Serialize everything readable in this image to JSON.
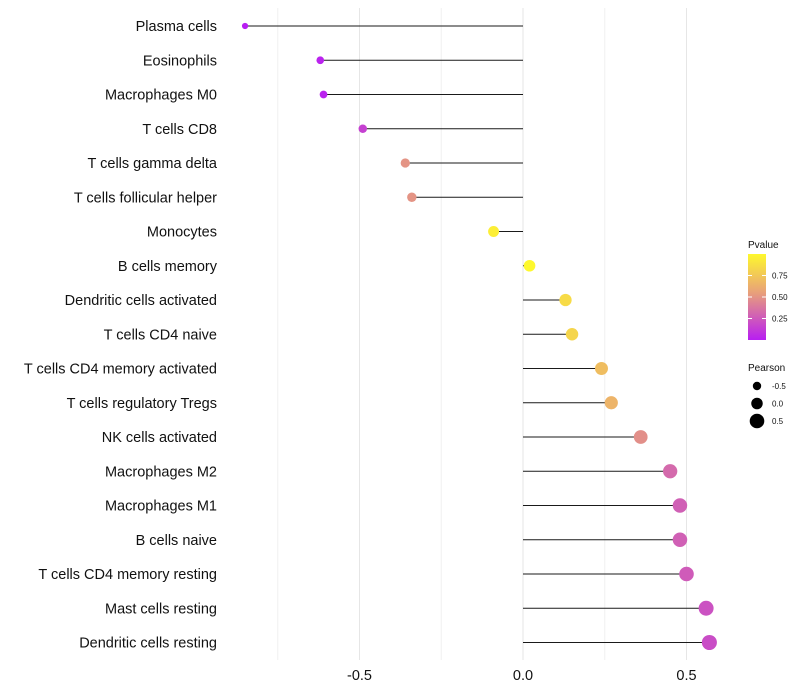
{
  "chart_data": {
    "type": "lollipop",
    "title": "",
    "xlabel": "",
    "ylabel": "",
    "xlim": [
      -0.85,
      0.6
    ],
    "x_ticks": [
      -0.5,
      0.0,
      0.5
    ],
    "x_tick_labels": [
      "-0.5",
      "0.0",
      "0.5"
    ],
    "x_minor_gridlines": [
      -0.75,
      -0.25,
      0.25
    ],
    "grid": true,
    "baseline": 0,
    "categories": [
      "Plasma cells",
      "Eosinophils",
      "Macrophages M0",
      "T cells CD8",
      "T cells gamma delta",
      "T cells follicular helper",
      "Monocytes",
      "B cells memory",
      "Dendritic cells activated",
      "T cells CD4 naive",
      "T cells CD4 memory activated",
      "T cells regulatory  Tregs ",
      "NK cells activated",
      "Macrophages M2",
      "Macrophages M1",
      "B cells naive",
      "T cells CD4 memory resting",
      "Mast cells resting",
      "Dendritic cells resting"
    ],
    "pearson": [
      -0.85,
      -0.62,
      -0.61,
      -0.49,
      -0.36,
      -0.34,
      -0.09,
      0.02,
      0.13,
      0.15,
      0.24,
      0.27,
      0.36,
      0.45,
      0.48,
      0.48,
      0.5,
      0.56,
      0.57
    ],
    "pvalue": [
      0.001,
      0.02,
      0.02,
      0.15,
      0.5,
      0.5,
      0.95,
      1.0,
      0.85,
      0.82,
      0.7,
      0.65,
      0.48,
      0.32,
      0.28,
      0.28,
      0.26,
      0.22,
      0.2
    ],
    "legend": {
      "color": {
        "title": "Pvalue",
        "ticks": [
          0.25,
          0.5,
          0.75
        ],
        "tick_labels": [
          "0.25",
          "0.50",
          "0.75"
        ],
        "range": [
          0.0,
          1.0
        ],
        "low_color": "#b81ef2",
        "mid_color": "#e8a07a",
        "high_color": "#fef82d"
      },
      "size": {
        "title": "Pearson",
        "values": [
          -0.5,
          0.0,
          0.5
        ],
        "labels": [
          "-0.5",
          "0.0",
          "0.5"
        ]
      }
    }
  }
}
